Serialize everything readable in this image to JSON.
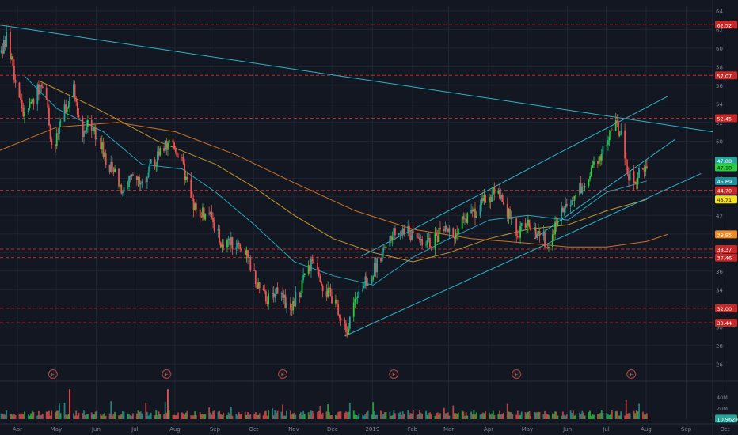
{
  "colors": {
    "background": "#131722",
    "grid": "#1f2533",
    "up_candle": "#26a69a",
    "up_candle_bright": "#2ecc40",
    "down_candle": "#ef5350",
    "sr_line": "#c62828",
    "trendline": "#2bb5c9",
    "ma_fast": "#2bb5c9",
    "ma_mid": "#d4a52e",
    "ma_slow": "#e07b24",
    "axis_text": "#7d8290"
  },
  "chart_data": {
    "type": "candlestick",
    "x_axis": {
      "ticks": [
        "Apr",
        "May",
        "Jun",
        "Jul",
        "Aug",
        "Sep",
        "Oct",
        "Nov",
        "Dec",
        "2019",
        "Feb",
        "Mar",
        "Apr",
        "May",
        "Jun",
        "Jul",
        "Aug",
        "Sep",
        "Oct"
      ],
      "start": "2018-04-01",
      "end": "2019-10-05"
    },
    "y_axis": {
      "ticks": [
        26,
        28,
        30,
        32,
        34,
        36,
        38,
        40,
        42,
        44,
        46,
        48,
        50,
        52,
        54,
        56,
        58,
        60,
        62,
        64
      ],
      "ylim": [
        25,
        64.5
      ]
    },
    "price_keypoints": [
      [
        "2018-04-01",
        59.5
      ],
      [
        "2018-04-06",
        61.0
      ],
      [
        "2018-04-12",
        57.0
      ],
      [
        "2018-04-20",
        52.5
      ],
      [
        "2018-04-28",
        55.0
      ],
      [
        "2018-05-05",
        56.8
      ],
      [
        "2018-05-12",
        48.5
      ],
      [
        "2018-05-20",
        53.0
      ],
      [
        "2018-05-28",
        55.5
      ],
      [
        "2018-06-03",
        50.5
      ],
      [
        "2018-06-10",
        52.0
      ],
      [
        "2018-06-18",
        49.5
      ],
      [
        "2018-06-26",
        47.0
      ],
      [
        "2018-07-05",
        44.8
      ],
      [
        "2018-07-12",
        46.0
      ],
      [
        "2018-07-20",
        45.5
      ],
      [
        "2018-07-28",
        47.5
      ],
      [
        "2018-08-05",
        49.0
      ],
      [
        "2018-08-12",
        50.2
      ],
      [
        "2018-08-20",
        47.5
      ],
      [
        "2018-08-28",
        43.0
      ],
      [
        "2018-09-05",
        42.2
      ],
      [
        "2018-09-12",
        41.8
      ],
      [
        "2018-09-20",
        38.5
      ],
      [
        "2018-09-28",
        39.0
      ],
      [
        "2018-10-05",
        38.8
      ],
      [
        "2018-10-12",
        36.5
      ],
      [
        "2018-10-20",
        33.5
      ],
      [
        "2018-10-28",
        32.8
      ],
      [
        "2018-11-03",
        34.0
      ],
      [
        "2018-11-10",
        31.8
      ],
      [
        "2018-11-18",
        33.5
      ],
      [
        "2018-11-25",
        36.0
      ],
      [
        "2018-12-01",
        37.8
      ],
      [
        "2018-12-08",
        34.0
      ],
      [
        "2018-12-16",
        33.0
      ],
      [
        "2018-12-22",
        30.0
      ],
      [
        "2018-12-26",
        29.8
      ],
      [
        "2019-01-03",
        34.0
      ],
      [
        "2019-01-12",
        35.0
      ],
      [
        "2019-01-20",
        37.5
      ],
      [
        "2019-01-28",
        39.5
      ],
      [
        "2019-02-05",
        40.5
      ],
      [
        "2019-02-12",
        40.0
      ],
      [
        "2019-02-20",
        39.5
      ],
      [
        "2019-03-01",
        39.0
      ],
      [
        "2019-03-10",
        40.5
      ],
      [
        "2019-03-18",
        40.0
      ],
      [
        "2019-03-26",
        41.5
      ],
      [
        "2019-04-05",
        42.5
      ],
      [
        "2019-04-12",
        44.0
      ],
      [
        "2019-04-20",
        44.5
      ],
      [
        "2019-04-28",
        43.0
      ],
      [
        "2019-05-06",
        40.0
      ],
      [
        "2019-05-14",
        41.0
      ],
      [
        "2019-05-22",
        40.2
      ],
      [
        "2019-05-30",
        39.0
      ],
      [
        "2019-06-07",
        41.5
      ],
      [
        "2019-06-14",
        43.5
      ],
      [
        "2019-06-22",
        44.5
      ],
      [
        "2019-06-30",
        46.0
      ],
      [
        "2019-07-07",
        47.8
      ],
      [
        "2019-07-15",
        50.0
      ],
      [
        "2019-07-21",
        52.0
      ],
      [
        "2019-07-26",
        50.5
      ],
      [
        "2019-08-01",
        46.5
      ],
      [
        "2019-08-06",
        45.5
      ],
      [
        "2019-08-11",
        47.5
      ],
      [
        "2019-08-15",
        47.2
      ]
    ],
    "volume_axis": {
      "ticks": [
        [
          "40M",
          40
        ],
        [
          "20M",
          20
        ],
        [
          "0",
          0
        ]
      ],
      "max": 60
    },
    "support_resistance_levels": [
      62.52,
      57.07,
      52.45,
      44.7,
      38.37,
      37.46,
      32.0,
      30.44
    ],
    "price_labels": [
      {
        "text": "62.52",
        "value": 62.52,
        "style": "red"
      },
      {
        "text": "57.07",
        "value": 57.07,
        "style": "red"
      },
      {
        "text": "52.45",
        "value": 52.45,
        "style": "red"
      },
      {
        "text": "47.88",
        "value": 47.88,
        "style": "green"
      },
      {
        "text": "47.18",
        "value": 47.18,
        "style": "bright-green"
      },
      {
        "text": "45.69",
        "value": 45.69,
        "style": "teal"
      },
      {
        "text": "44.70",
        "value": 44.7,
        "style": "red"
      },
      {
        "text": "43.71",
        "value": 43.71,
        "style": "yellow"
      },
      {
        "text": "39.95",
        "value": 39.95,
        "style": "orange"
      },
      {
        "text": "38.37",
        "value": 38.37,
        "style": "red"
      },
      {
        "text": "37.46",
        "value": 37.46,
        "style": "red"
      },
      {
        "text": "32.00",
        "value": 32.0,
        "style": "red"
      },
      {
        "text": "30.44",
        "value": 30.44,
        "style": "red"
      },
      {
        "text": "10.962M",
        "value": 10.962,
        "style": "green-volume"
      }
    ],
    "trendlines": [
      {
        "name": "long-term-resistance",
        "from": [
          "2018-03-31",
          62.5
        ],
        "to": [
          "2019-10-05",
          51.0
        ]
      },
      {
        "name": "channel-upper",
        "from": [
          "2019-01-06",
          37.6
        ],
        "to": [
          "2019-08-31",
          54.8
        ]
      },
      {
        "name": "channel-lower",
        "from": [
          "2018-12-24",
          29.0
        ],
        "to": [
          "2019-09-26",
          46.5
        ]
      },
      {
        "name": "channel-mid",
        "from": [
          "2019-05-20",
          39.5
        ],
        "to": [
          "2019-09-06",
          50.2
        ]
      }
    ],
    "moving_averages": [
      {
        "name": "fast",
        "color": "ma_fast",
        "points": [
          [
            "2018-04-20",
            57.0
          ],
          [
            "2018-05-15",
            53.5
          ],
          [
            "2018-06-20",
            51.0
          ],
          [
            "2018-07-20",
            47.5
          ],
          [
            "2018-08-20",
            47.0
          ],
          [
            "2018-09-15",
            44.5
          ],
          [
            "2018-10-15",
            41.0
          ],
          [
            "2018-11-15",
            37.0
          ],
          [
            "2018-12-15",
            35.5
          ],
          [
            "2019-01-15",
            34.5
          ],
          [
            "2019-02-15",
            37.5
          ],
          [
            "2019-03-15",
            39.5
          ],
          [
            "2019-04-15",
            41.5
          ],
          [
            "2019-05-15",
            42.0
          ],
          [
            "2019-06-15",
            41.5
          ],
          [
            "2019-07-15",
            44.5
          ],
          [
            "2019-08-15",
            45.7
          ]
        ]
      },
      {
        "name": "mid",
        "color": "ma_mid",
        "points": [
          [
            "2018-05-01",
            56.5
          ],
          [
            "2018-06-15",
            53.5
          ],
          [
            "2018-08-01",
            50.0
          ],
          [
            "2018-09-15",
            47.5
          ],
          [
            "2018-10-15",
            45.0
          ],
          [
            "2018-11-15",
            42.0
          ],
          [
            "2018-12-15",
            39.5
          ],
          [
            "2019-01-15",
            38.0
          ],
          [
            "2019-02-15",
            37.0
          ],
          [
            "2019-03-15",
            38.0
          ],
          [
            "2019-04-15",
            39.5
          ],
          [
            "2019-05-15",
            40.5
          ],
          [
            "2019-06-15",
            41.0
          ],
          [
            "2019-07-15",
            42.5
          ],
          [
            "2019-08-15",
            43.7
          ]
        ]
      },
      {
        "name": "slow",
        "color": "ma_slow",
        "points": [
          [
            "2018-04-01",
            49.0
          ],
          [
            "2018-05-15",
            51.5
          ],
          [
            "2018-07-01",
            52.0
          ],
          [
            "2018-08-15",
            51.0
          ],
          [
            "2018-10-01",
            48.5
          ],
          [
            "2018-11-15",
            45.5
          ],
          [
            "2019-01-01",
            42.5
          ],
          [
            "2019-02-15",
            40.5
          ],
          [
            "2019-04-01",
            39.5
          ],
          [
            "2019-05-15",
            39.0
          ],
          [
            "2019-06-15",
            38.6
          ],
          [
            "2019-07-15",
            38.6
          ],
          [
            "2019-08-15",
            39.2
          ],
          [
            "2019-08-31",
            39.95
          ]
        ]
      }
    ],
    "earnings_markers": [
      {
        "date": "2018-05-12",
        "label": "E"
      },
      {
        "date": "2018-08-08",
        "label": "E"
      },
      {
        "date": "2018-11-06",
        "label": "E"
      },
      {
        "date": "2019-01-31",
        "label": "E"
      },
      {
        "date": "2019-05-06",
        "label": "E"
      },
      {
        "date": "2019-08-03",
        "label": "E"
      }
    ]
  }
}
